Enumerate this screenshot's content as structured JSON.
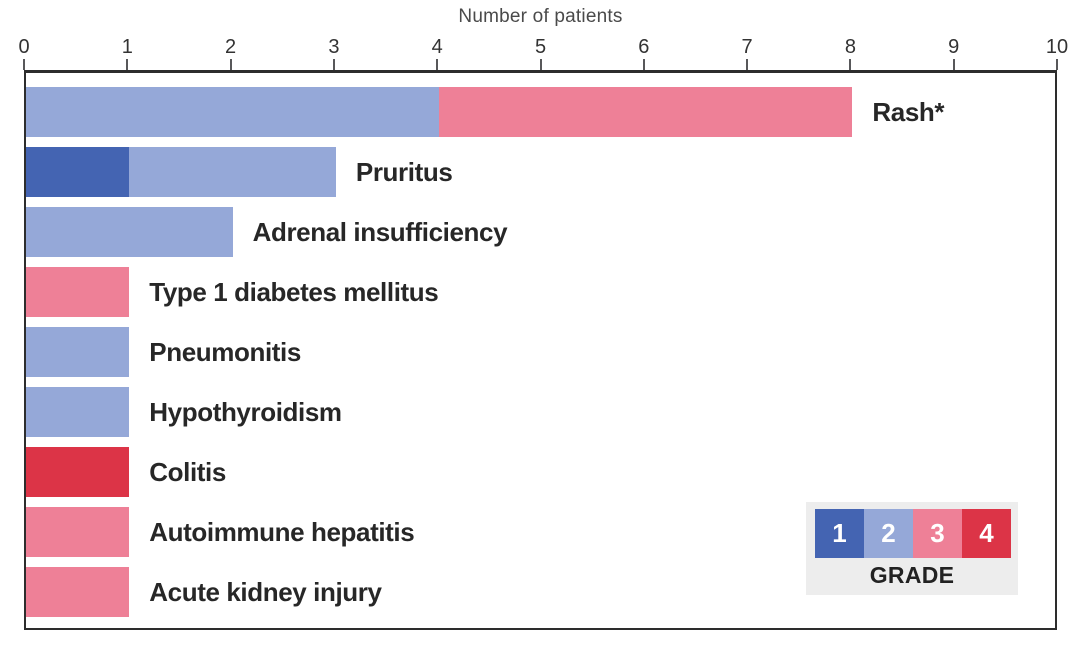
{
  "chart_data": {
    "type": "bar",
    "orientation": "horizontal",
    "stacked": true,
    "xlabel": "Number of patients",
    "ylabel": "",
    "xlim": [
      0,
      10
    ],
    "xticks": [
      "0",
      "1",
      "2",
      "3",
      "4",
      "5",
      "6",
      "7",
      "8",
      "9",
      "10"
    ],
    "grid": false,
    "categories": [
      "Rash*",
      "Pruritus",
      "Adrenal insufficiency",
      "Type 1 diabetes mellitus",
      "Pneumonitis",
      "Hypothyroidism",
      "Colitis",
      "Autoimmune hepatitis",
      "Acute kidney injury"
    ],
    "series": [
      {
        "name": "Grade 1",
        "color": "#4464b2",
        "values": [
          0,
          1,
          0,
          0,
          0,
          0,
          0,
          0,
          0
        ]
      },
      {
        "name": "Grade 2",
        "color": "#95a8d8",
        "values": [
          4,
          2,
          2,
          0,
          1,
          1,
          0,
          0,
          0
        ]
      },
      {
        "name": "Grade 3",
        "color": "#ee8097",
        "values": [
          4,
          0,
          0,
          1,
          0,
          0,
          0,
          1,
          1
        ]
      },
      {
        "name": "Grade 4",
        "color": "#dc3447",
        "values": [
          0,
          0,
          0,
          0,
          0,
          0,
          1,
          0,
          0
        ]
      }
    ],
    "totals": [
      8,
      3,
      2,
      1,
      1,
      1,
      1,
      1,
      1
    ],
    "legend": {
      "title": "GRADE",
      "position": "bottom-right",
      "items": [
        {
          "label": "1",
          "color": "#4464b2"
        },
        {
          "label": "2",
          "color": "#95a8d8"
        },
        {
          "label": "3",
          "color": "#ee8097"
        },
        {
          "label": "4",
          "color": "#dc3447"
        }
      ]
    }
  },
  "colors": {
    "background": "#ffffff",
    "plot_border": "#2d2d2d",
    "tick_mark": "#58585a",
    "tick_label": "#333333",
    "axis_title": "#4a4a4a",
    "category_label": "#272727",
    "legend_background": "#ededed"
  }
}
